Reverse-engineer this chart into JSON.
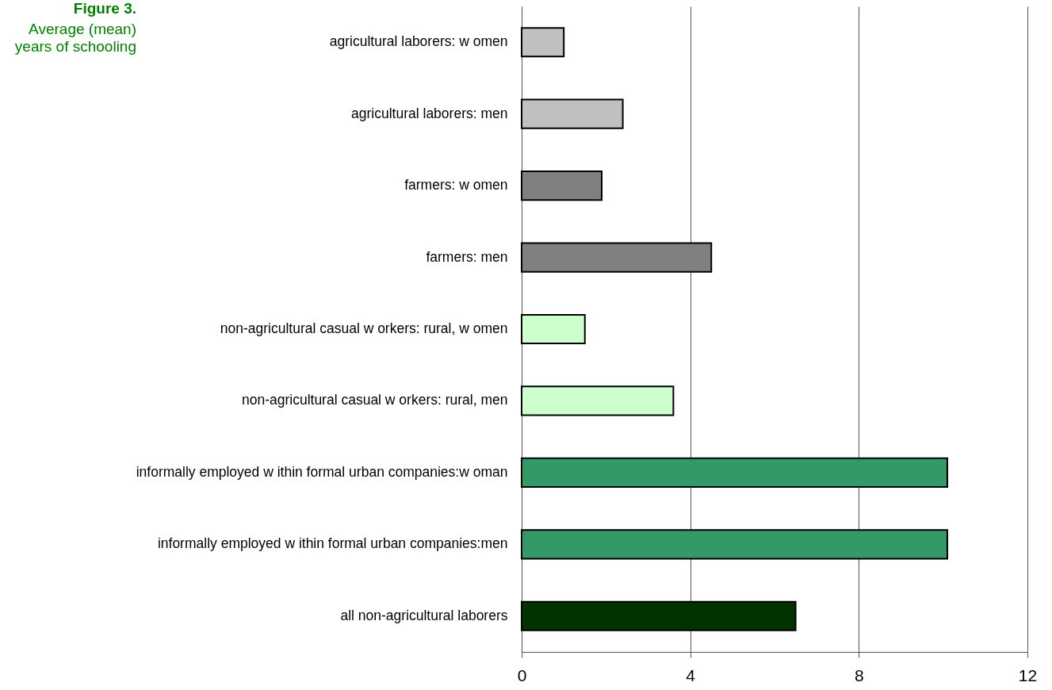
{
  "chart_data": {
    "type": "bar",
    "orientation": "horizontal",
    "title": "Figure 3.",
    "subtitle": "Average (mean) years of schooling",
    "categories": [
      "agricultural laborers: w omen",
      "agricultural laborers: men",
      "farmers: w omen",
      "farmers: men",
      "non-agricultural casual w orkers: rural, w omen",
      "non-agricultural casual w orkers: rural, men",
      "informally employed w ithin formal urban companies:w oman",
      "informally employed w ithin formal urban companies:men",
      "all non-agricultural laborers"
    ],
    "values": [
      1.0,
      2.4,
      1.9,
      4.5,
      1.5,
      3.6,
      10.1,
      10.1,
      6.5
    ],
    "colors": [
      "#c0c0c0",
      "#c0c0c0",
      "#808080",
      "#808080",
      "#ccffcc",
      "#ccffcc",
      "#339966",
      "#339966",
      "#003300"
    ],
    "xlim": [
      0,
      12
    ],
    "xticks": [
      0,
      4,
      8,
      12
    ],
    "grid": "x"
  }
}
